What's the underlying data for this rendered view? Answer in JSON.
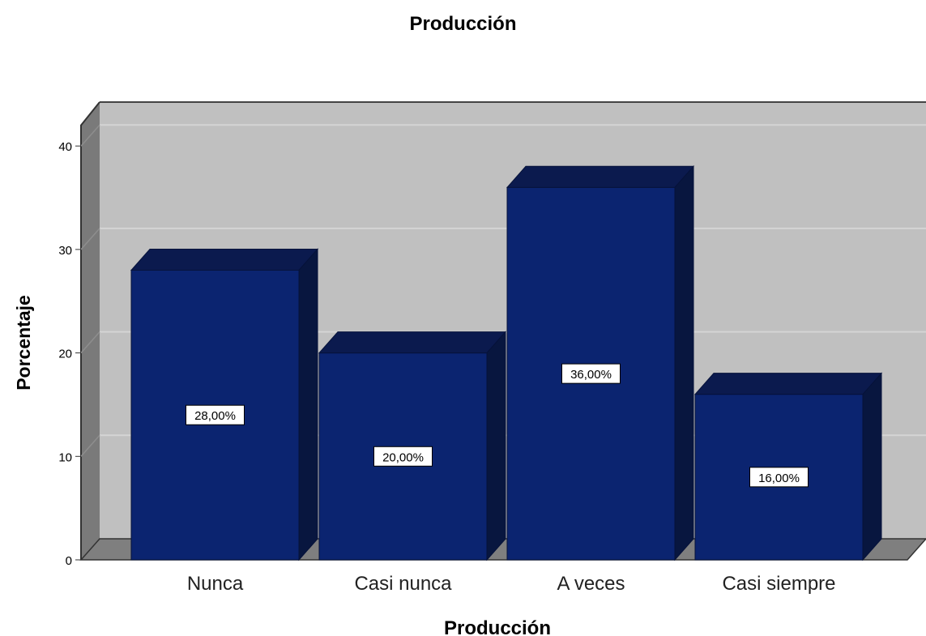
{
  "chart_data": {
    "type": "bar",
    "title": "Producción",
    "xlabel": "Producción",
    "ylabel": "Porcentaje",
    "categories": [
      "Nunca",
      "Casi nunca",
      "A veces",
      "Casi siempre"
    ],
    "values": [
      28,
      20,
      36,
      16
    ],
    "data_labels": [
      "28,00%",
      "20,00%",
      "36,00%",
      "16,00%"
    ],
    "y_ticks": [
      0,
      10,
      20,
      30,
      40
    ],
    "ylim": [
      0,
      42
    ],
    "grid": true,
    "style": "3d",
    "colors": {
      "bar_front": "#0b2470",
      "bar_top": "#0b1a4e",
      "bar_side": "#08163f",
      "plot_background": "#c0c0c0",
      "gridline": "#d4d4d4",
      "wall_side": "#7a7a7a",
      "floor": "#7f7f7f"
    }
  }
}
